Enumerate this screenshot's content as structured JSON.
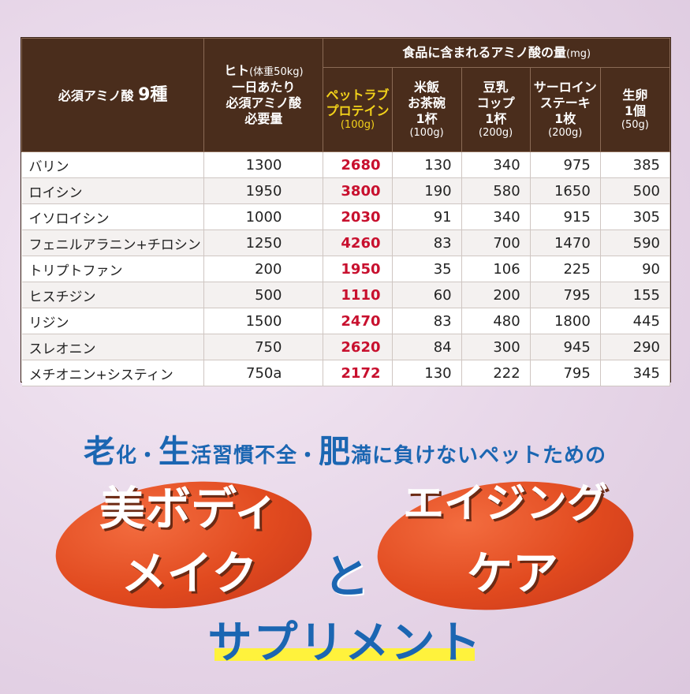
{
  "table": {
    "header": {
      "amino_title": "必須アミノ酸",
      "amino_count": "9種",
      "human_line1": "ヒト",
      "human_weight": "(体重50kg)",
      "human_line2": "一日あたり",
      "human_line3": "必須アミノ酸",
      "human_line4": "必要量",
      "food_group": "食品に含まれるアミノ酸の量",
      "food_unit": "(mg)",
      "foods": [
        {
          "line1": "ペットラブ",
          "line2": "プロテイン",
          "line3": "",
          "amount": "(100g)"
        },
        {
          "line1": "米飯",
          "line2": "お茶碗",
          "line3": "1杯",
          "amount": "(100g)"
        },
        {
          "line1": "豆乳",
          "line2": "コップ",
          "line3": "1杯",
          "amount": "(200g)"
        },
        {
          "line1": "サーロイン",
          "line2": "ステーキ",
          "line3": "1枚",
          "amount": "(200g)"
        },
        {
          "line1": "生卵",
          "line2": "1個",
          "line3": "",
          "amount": "(50g)"
        }
      ]
    },
    "rows": [
      {
        "name": "バリン",
        "human": "1300",
        "pet": "2680",
        "rice": "130",
        "soy": "340",
        "steak": "975",
        "egg": "385"
      },
      {
        "name": "ロイシン",
        "human": "1950",
        "pet": "3800",
        "rice": "190",
        "soy": "580",
        "steak": "1650",
        "egg": "500"
      },
      {
        "name": "イソロイシン",
        "human": "1000",
        "pet": "2030",
        "rice": "91",
        "soy": "340",
        "steak": "915",
        "egg": "305"
      },
      {
        "name": "フェニルアラニン+チロシン",
        "human": "1250",
        "pet": "4260",
        "rice": "83",
        "soy": "700",
        "steak": "1470",
        "egg": "590"
      },
      {
        "name": "トリプトファン",
        "human": "200",
        "pet": "1950",
        "rice": "35",
        "soy": "106",
        "steak": "225",
        "egg": "90"
      },
      {
        "name": "ヒスチジン",
        "human": "500",
        "pet": "1110",
        "rice": "60",
        "soy": "200",
        "steak": "795",
        "egg": "155"
      },
      {
        "name": "リジン",
        "human": "1500",
        "pet": "2470",
        "rice": "83",
        "soy": "480",
        "steak": "1800",
        "egg": "445"
      },
      {
        "name": "スレオニン",
        "human": "750",
        "pet": "2620",
        "rice": "84",
        "soy": "300",
        "steak": "945",
        "egg": "290"
      },
      {
        "name": "メチオニン+システィン",
        "human": "750a",
        "pet": "2172",
        "rice": "130",
        "soy": "222",
        "steak": "795",
        "egg": "345"
      }
    ]
  },
  "promo": {
    "tagline_parts": [
      "老",
      "化・",
      "生",
      "活習慣不全・",
      "肥",
      "満に負けないペットための"
    ],
    "left_line1": "美ボディ",
    "left_line2": "メイク",
    "and": "と",
    "right_line1": "エイジング",
    "right_line2": "ケア",
    "supplement": "サプリメント"
  },
  "colors": {
    "header_bg": "#4a2d1c",
    "pet_header": "#f3d21a",
    "pet_values": "#c8102e",
    "blue_text": "#1b66b2",
    "oval": "#e14a1f",
    "underline": "#fff23c"
  }
}
